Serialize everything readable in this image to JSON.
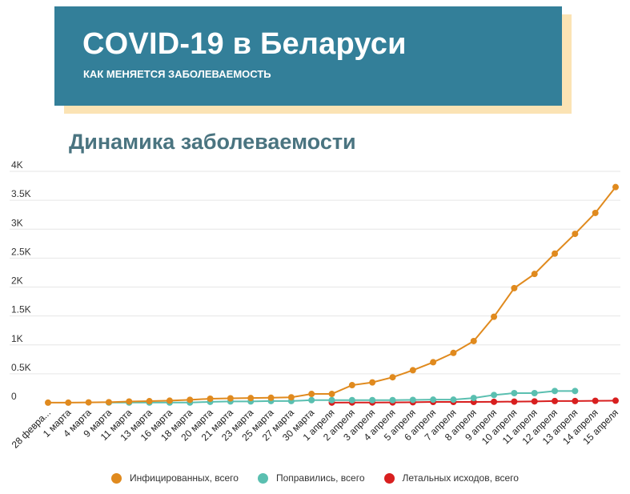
{
  "header": {
    "title": "COVID-19 в Беларуси",
    "subtitle": "КАК МЕНЯЕТСЯ ЗАБОЛЕВАЕМОСТЬ"
  },
  "chart_title": "Динамика заболеваемости",
  "colors": {
    "infected": "#e08a1e",
    "recovered": "#5abfb0",
    "deaths": "#d81f1f",
    "banner": "#337f99",
    "banner_shadow": "#fbe3b4",
    "grid": "#e6e6e6"
  },
  "chart_data": {
    "type": "line",
    "title": "Динамика заболеваемости",
    "xlabel": "",
    "ylabel": "",
    "ylim": [
      0,
      4000
    ],
    "grid": true,
    "legend_position": "bottom",
    "ytick_labels": [
      "0",
      "0.5K",
      "1K",
      "1.5K",
      "2K",
      "2.5K",
      "3K",
      "3.5K",
      "4K"
    ],
    "ytick_values": [
      0,
      500,
      1000,
      1500,
      2000,
      2500,
      3000,
      3500,
      4000
    ],
    "categories": [
      "28 февраля",
      "1 марта",
      "4 марта",
      "9 марта",
      "11 марта",
      "13 марта",
      "16 марта",
      "18 марта",
      "20 марта",
      "21 марта",
      "23 марта",
      "25 марта",
      "27 марта",
      "30 марта",
      "1 апреля",
      "2 апреля",
      "3 апреля",
      "4 апреля",
      "5 апреля",
      "6 апреля",
      "7 апреля",
      "8 апреля",
      "9 апреля",
      "10 апреля",
      "11 апреля",
      "12 апреля",
      "13 апреля",
      "14 апреля",
      "15 апреля"
    ],
    "category_labels": [
      "28 февра...",
      "1 марта",
      "4 марта",
      "9 марта",
      "11 марта",
      "13 марта",
      "16 марта",
      "18 марта",
      "20 марта",
      "21 марта",
      "23 марта",
      "25 марта",
      "27 марта",
      "30 марта",
      "1 апреля",
      "2 апреля",
      "3 апреля",
      "4 апреля",
      "5 апреля",
      "6 апреля",
      "7 апреля",
      "8 апреля",
      "9 апреля",
      "10 апреля",
      "11 апреля",
      "12 апреля",
      "13 апреля",
      "14 апреля",
      "15 апреля"
    ],
    "series": [
      {
        "name": "Инфицированных, всего",
        "values": [
          1,
          1,
          6,
          9,
          21,
          27,
          36,
          51,
          69,
          76,
          81,
          86,
          94,
          152,
          152,
          304,
          351,
          440,
          562,
          700,
          861,
          1066,
          1486,
          1981,
          2226,
          2578,
          2919,
          3281,
          3728
        ]
      },
      {
        "name": "Поправились, всего",
        "values": [
          null,
          null,
          null,
          3,
          3,
          3,
          3,
          3,
          15,
          22,
          22,
          29,
          29,
          45,
          45,
          45,
          45,
          45,
          49,
          53,
          53,
          82,
          134,
          166,
          166,
          203,
          203,
          null,
          null
        ]
      },
      {
        "name": "Летальных исходов, всего",
        "values": [
          null,
          null,
          null,
          null,
          null,
          null,
          null,
          null,
          null,
          null,
          null,
          null,
          null,
          null,
          2,
          4,
          4,
          5,
          8,
          13,
          13,
          13,
          16,
          19,
          23,
          29,
          29,
          33,
          36
        ]
      }
    ]
  }
}
